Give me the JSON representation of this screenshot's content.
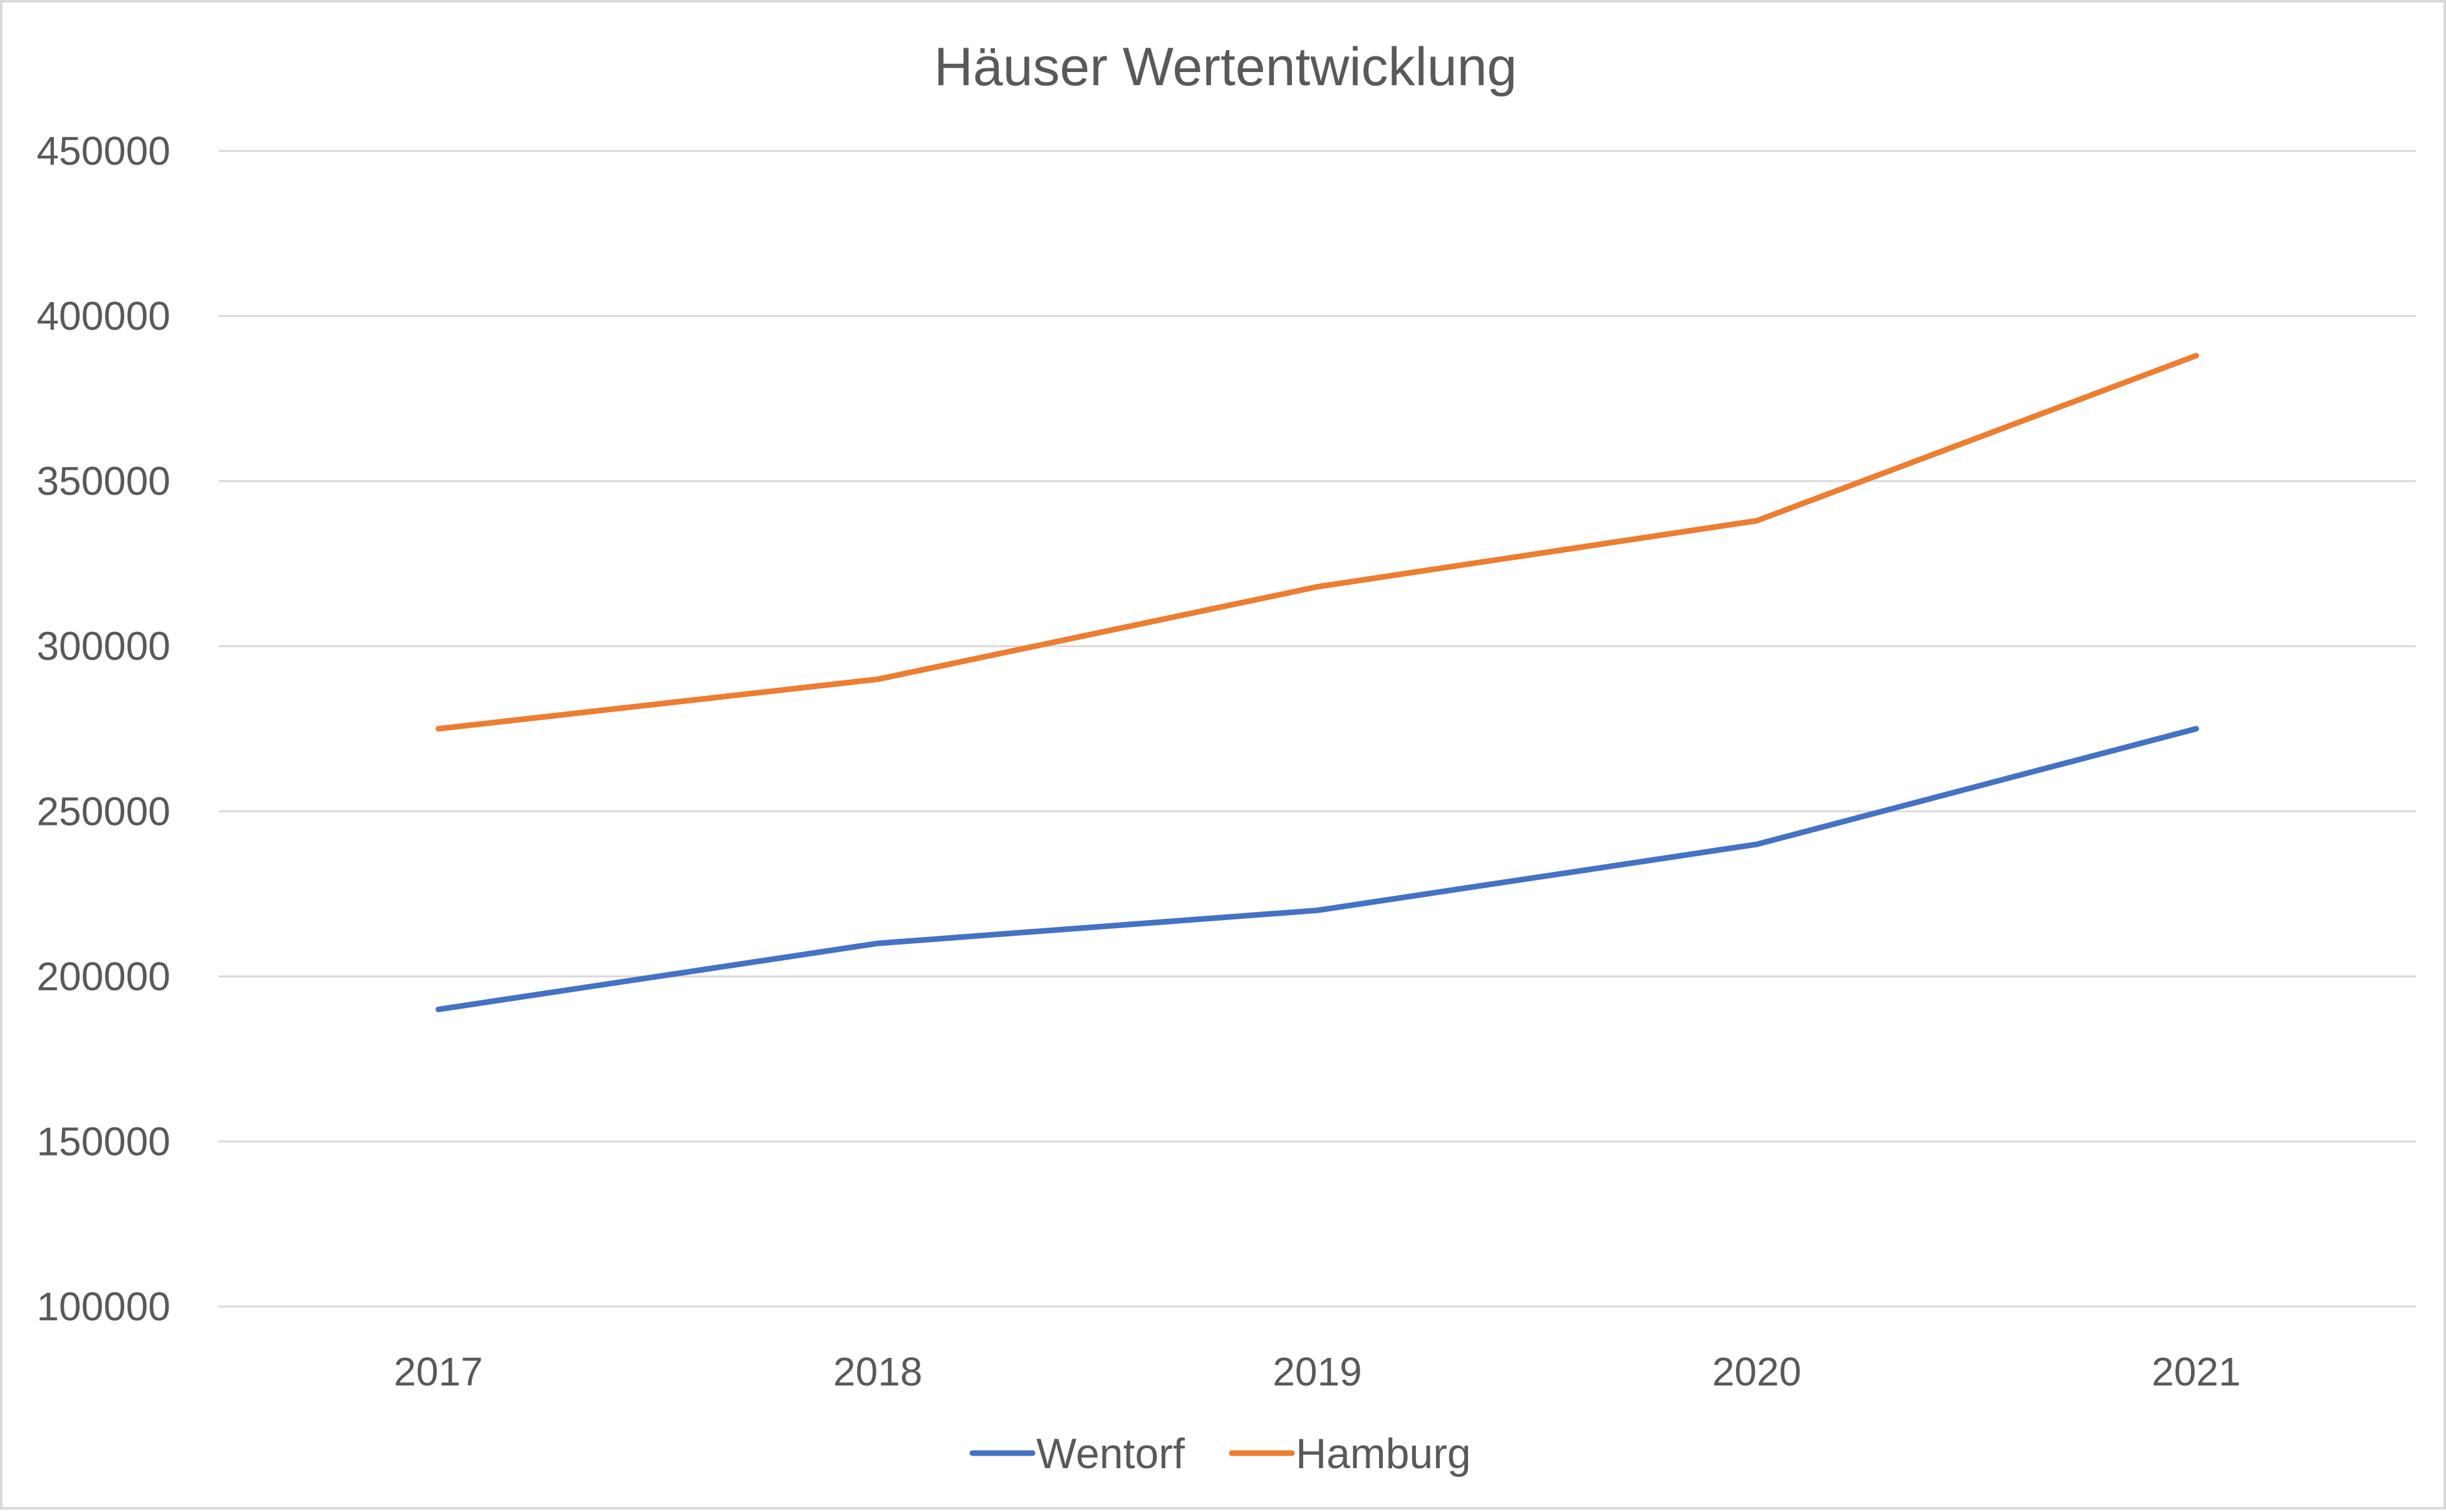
{
  "chart_data": {
    "type": "line",
    "title": "Häuser Wertentwicklung",
    "xlabel": "",
    "ylabel": "",
    "categories": [
      "2017",
      "2018",
      "2019",
      "2020",
      "2021"
    ],
    "y_ticks": [
      "100000",
      "150000",
      "200000",
      "250000",
      "300000",
      "350000",
      "400000",
      "450000"
    ],
    "ylim": [
      100000,
      450000
    ],
    "grid": true,
    "legend_position": "bottom",
    "series": [
      {
        "name": "Wentorf",
        "color": "#4472c4",
        "values": [
          190000,
          210000,
          220000,
          240000,
          275000
        ]
      },
      {
        "name": "Hamburg",
        "color": "#ed7d31",
        "values": [
          275000,
          290000,
          318000,
          338000,
          388000
        ]
      }
    ]
  }
}
